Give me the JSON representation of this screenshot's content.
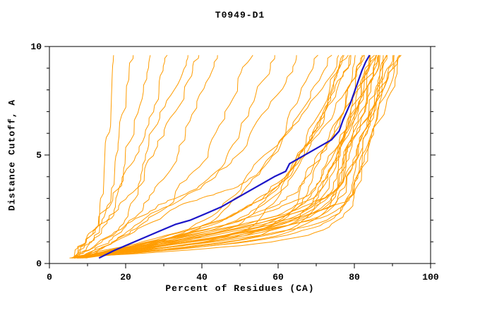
{
  "figure": {
    "title": "T0949-D1",
    "xlabel": "Percent of Residues (CA)",
    "ylabel": "Distance Cutoff, A"
  },
  "chart_data": {
    "type": "line",
    "title": "T0949-D1",
    "xlabel": "Percent of Residues (CA)",
    "ylabel": "Distance Cutoff, A",
    "xlim": [
      0,
      100
    ],
    "ylim": [
      0,
      10
    ],
    "x_ticks": [
      0,
      20,
      40,
      60,
      80,
      100
    ],
    "y_ticks": [
      0,
      5,
      10
    ],
    "x_minor_step": 10,
    "y_minor_step": 1,
    "grid": false,
    "legend_position": "none",
    "colors": {
      "predictions": "#ff9c00",
      "highlight": "#1c16c8",
      "axis": "#000000",
      "background": "#ffffff"
    },
    "curve_y_anchors": [
      0.25,
      2,
      5,
      9.6
    ],
    "prediction_curves": [
      [
        6,
        11,
        14,
        17
      ],
      [
        6,
        13,
        17,
        22
      ],
      [
        7,
        15,
        20,
        26
      ],
      [
        6,
        14,
        22,
        31
      ],
      [
        7,
        18,
        26,
        35
      ],
      [
        6,
        16,
        28,
        39
      ],
      [
        7,
        20,
        33,
        44
      ],
      [
        8,
        23,
        40,
        52
      ],
      [
        7,
        24,
        44,
        60
      ],
      [
        8,
        30,
        50,
        66
      ],
      [
        9,
        34,
        55,
        70
      ],
      [
        8,
        37,
        58,
        73
      ],
      [
        9,
        40,
        60,
        75
      ],
      [
        6,
        44,
        64,
        77
      ],
      [
        7,
        47,
        66,
        78
      ],
      [
        6,
        50,
        68,
        80
      ],
      [
        8,
        53,
        70,
        81
      ],
      [
        7,
        55,
        71,
        82
      ],
      [
        6,
        57,
        72,
        83
      ],
      [
        9,
        59,
        73,
        84
      ],
      [
        7,
        61,
        74,
        84
      ],
      [
        8,
        62,
        75,
        85
      ],
      [
        6,
        63,
        76,
        85
      ],
      [
        7,
        64,
        76,
        86
      ],
      [
        8,
        65,
        77,
        86
      ],
      [
        6,
        66,
        78,
        87
      ],
      [
        7,
        67,
        78,
        87
      ],
      [
        8,
        68,
        79,
        88
      ],
      [
        6,
        69,
        80,
        88
      ],
      [
        7,
        70,
        80,
        89
      ],
      [
        9,
        71,
        81,
        89
      ],
      [
        8,
        72,
        82,
        90
      ],
      [
        6,
        64,
        77,
        90
      ],
      [
        7,
        66,
        79,
        91
      ],
      [
        8,
        68,
        80,
        91
      ],
      [
        6,
        70,
        81,
        92
      ],
      [
        7,
        71,
        82,
        93
      ],
      [
        9,
        58,
        74,
        86
      ],
      [
        8,
        56,
        72,
        84
      ],
      [
        6,
        52,
        69,
        82
      ],
      [
        7,
        48,
        67,
        80
      ],
      [
        8,
        45,
        65,
        79
      ]
    ],
    "highlight_curve": [
      [
        13,
        0.25
      ],
      [
        17,
        0.6
      ],
      [
        21,
        0.9
      ],
      [
        25,
        1.2
      ],
      [
        29,
        1.5
      ],
      [
        33,
        1.8
      ],
      [
        37,
        2.0
      ],
      [
        41,
        2.3
      ],
      [
        45,
        2.6
      ],
      [
        48,
        2.9
      ],
      [
        51,
        3.2
      ],
      [
        54,
        3.5
      ],
      [
        57,
        3.8
      ],
      [
        59,
        4.0
      ],
      [
        62,
        4.25
      ],
      [
        63,
        4.6
      ],
      [
        65,
        4.8
      ],
      [
        68,
        5.1
      ],
      [
        71,
        5.4
      ],
      [
        74,
        5.7
      ],
      [
        76,
        6.1
      ],
      [
        77,
        6.6
      ],
      [
        78,
        7.0
      ],
      [
        79,
        7.4
      ],
      [
        80,
        7.9
      ],
      [
        81,
        8.4
      ],
      [
        82,
        8.9
      ],
      [
        83,
        9.3
      ],
      [
        84,
        9.6
      ]
    ]
  }
}
